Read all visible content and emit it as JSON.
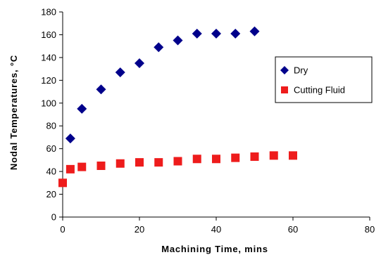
{
  "chart_data": {
    "type": "scatter",
    "title": "",
    "xlabel": "Machining Time, mins",
    "ylabel": "Nodal Temperatures, °C",
    "xlim": [
      0,
      80
    ],
    "ylim": [
      0,
      180
    ],
    "x_ticks": [
      0,
      20,
      40,
      60,
      80
    ],
    "y_ticks": [
      0,
      20,
      40,
      60,
      80,
      100,
      120,
      140,
      160,
      180
    ],
    "grid": false,
    "legend_position": "right",
    "series": [
      {
        "name": "Dry",
        "marker": "diamond",
        "color": "#00008b",
        "x": [
          2,
          5,
          10,
          15,
          20,
          25,
          30,
          35,
          40,
          45,
          50
        ],
        "y": [
          69,
          95,
          112,
          127,
          135,
          149,
          155,
          161,
          161,
          161,
          163
        ]
      },
      {
        "name": "Cutting Fluid",
        "marker": "square",
        "color": "#ee1c1c",
        "x": [
          0,
          2,
          5,
          10,
          15,
          20,
          25,
          30,
          35,
          40,
          45,
          50,
          55,
          60
        ],
        "y": [
          30,
          42,
          44,
          45,
          47,
          48,
          48,
          49,
          51,
          51,
          52,
          53,
          54,
          54
        ]
      }
    ]
  }
}
